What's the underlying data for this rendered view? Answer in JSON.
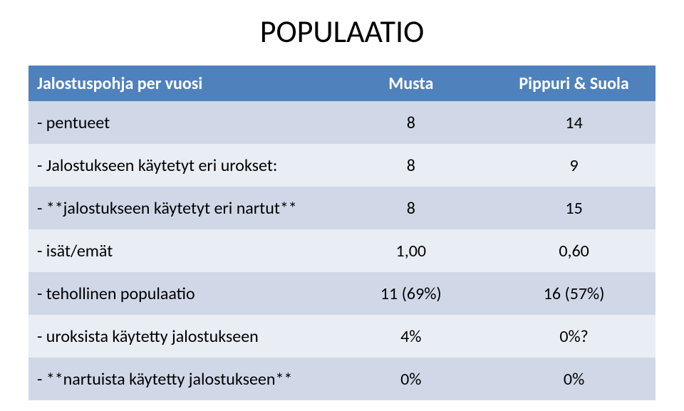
{
  "title": "POPULAATIO",
  "table": {
    "type": "table",
    "header_bg": "#4f81bd",
    "header_color": "#ffffff",
    "row_bg_even": "#d0d8e8",
    "row_bg_odd": "#e9edf4",
    "text_color": "#000000",
    "title_fontsize": 44,
    "header_fontsize": 24,
    "body_fontsize": 24,
    "header_row_height": 50,
    "body_row_height": 60,
    "columns": [
      {
        "label": "Jalostuspohja per vuosi",
        "align": "left",
        "width_pct": 48
      },
      {
        "label": "Musta",
        "align": "center",
        "width_pct": 26
      },
      {
        "label": "Pippuri & Suola",
        "align": "center",
        "width_pct": 26
      }
    ],
    "rows": [
      {
        "label": "- pentueet",
        "c1": "8",
        "c2": "14"
      },
      {
        "label": "- Jalostukseen käytetyt eri urokset:",
        "c1": "8",
        "c2": "9"
      },
      {
        "label": "- **jalostukseen käytetyt eri nartut**",
        "c1": "8",
        "c2": "15"
      },
      {
        "label": "- isät/emät",
        "c1": "1,00",
        "c2": "0,60"
      },
      {
        "label": "- tehollinen populaatio",
        "c1": "11 (69%)",
        "c2": "16 (57%)"
      },
      {
        "label": "- uroksista käytetty jalostukseen",
        "c1": "4%",
        "c2": "0%?"
      },
      {
        "label": "- **nartuista käytetty jalostukseen**",
        "c1": "0%",
        "c2": "0%"
      }
    ]
  }
}
